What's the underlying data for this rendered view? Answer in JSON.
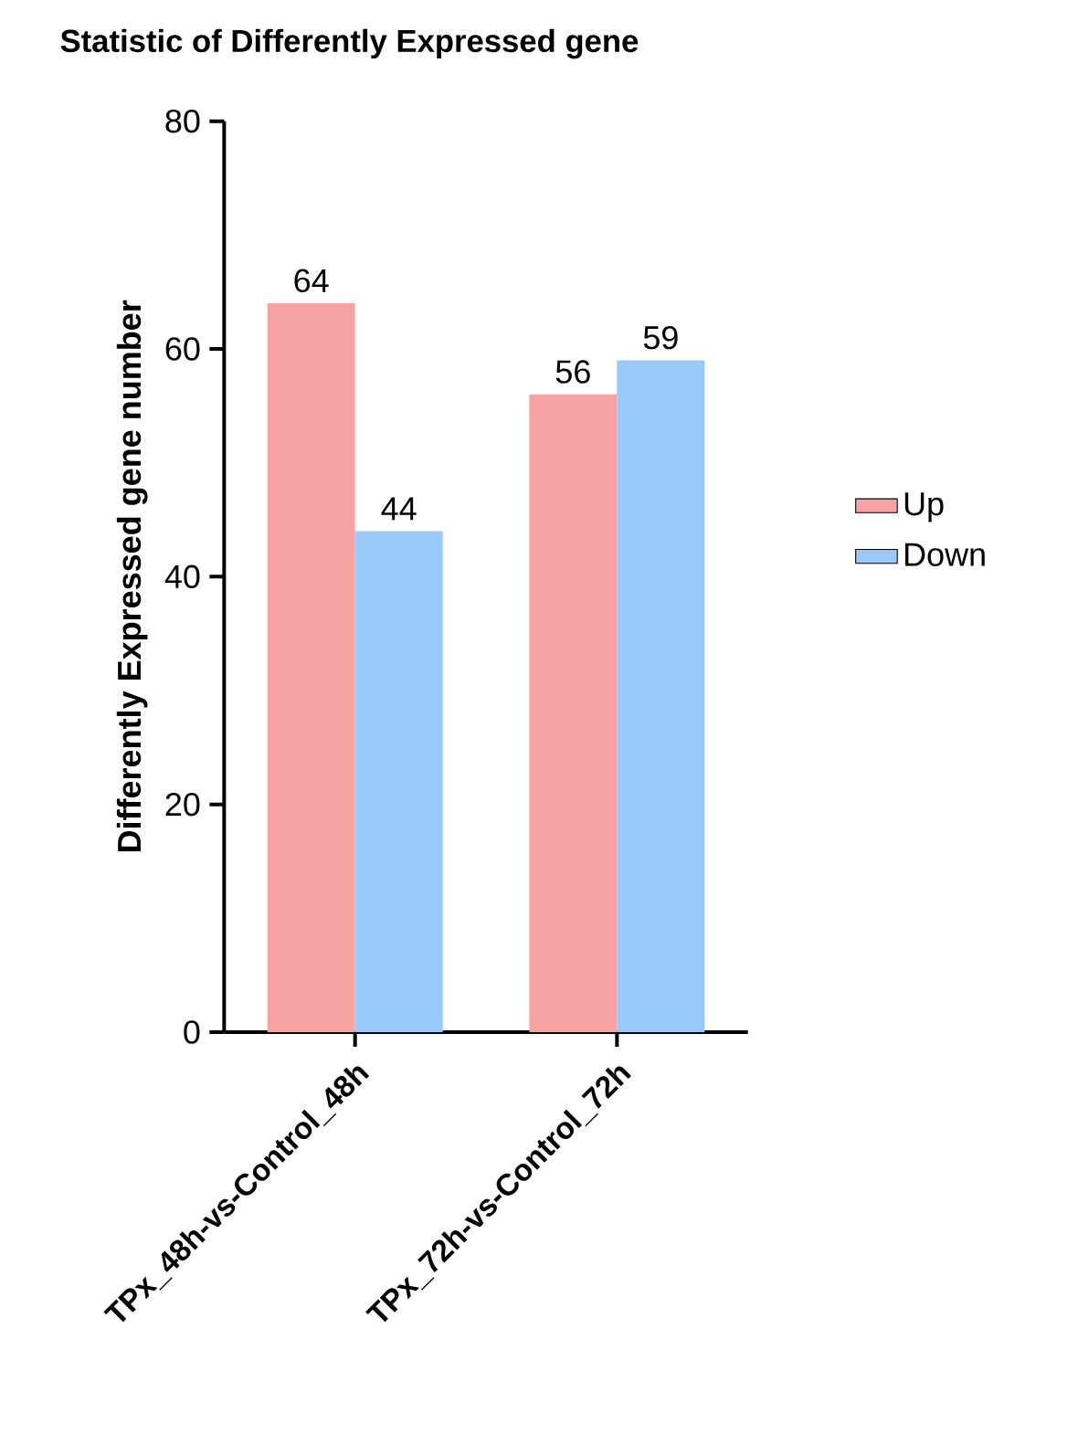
{
  "chart_data": {
    "type": "bar",
    "title": "Statistic of Differently Expressed gene",
    "ylabel": "Differently Expressed gene number",
    "categories": [
      "TPx_48h-vs-Control_48h",
      "TPx_72h-vs-Control_72h"
    ],
    "series": [
      {
        "name": "Up",
        "color": "#f8a3a3",
        "values": [
          64,
          56
        ]
      },
      {
        "name": "Down",
        "color": "#99c9f9",
        "values": [
          44,
          59
        ]
      }
    ],
    "ylim": [
      0,
      80
    ],
    "yticks": [
      0,
      20,
      40,
      60,
      80
    ],
    "data_labels": true,
    "legend": "right"
  }
}
